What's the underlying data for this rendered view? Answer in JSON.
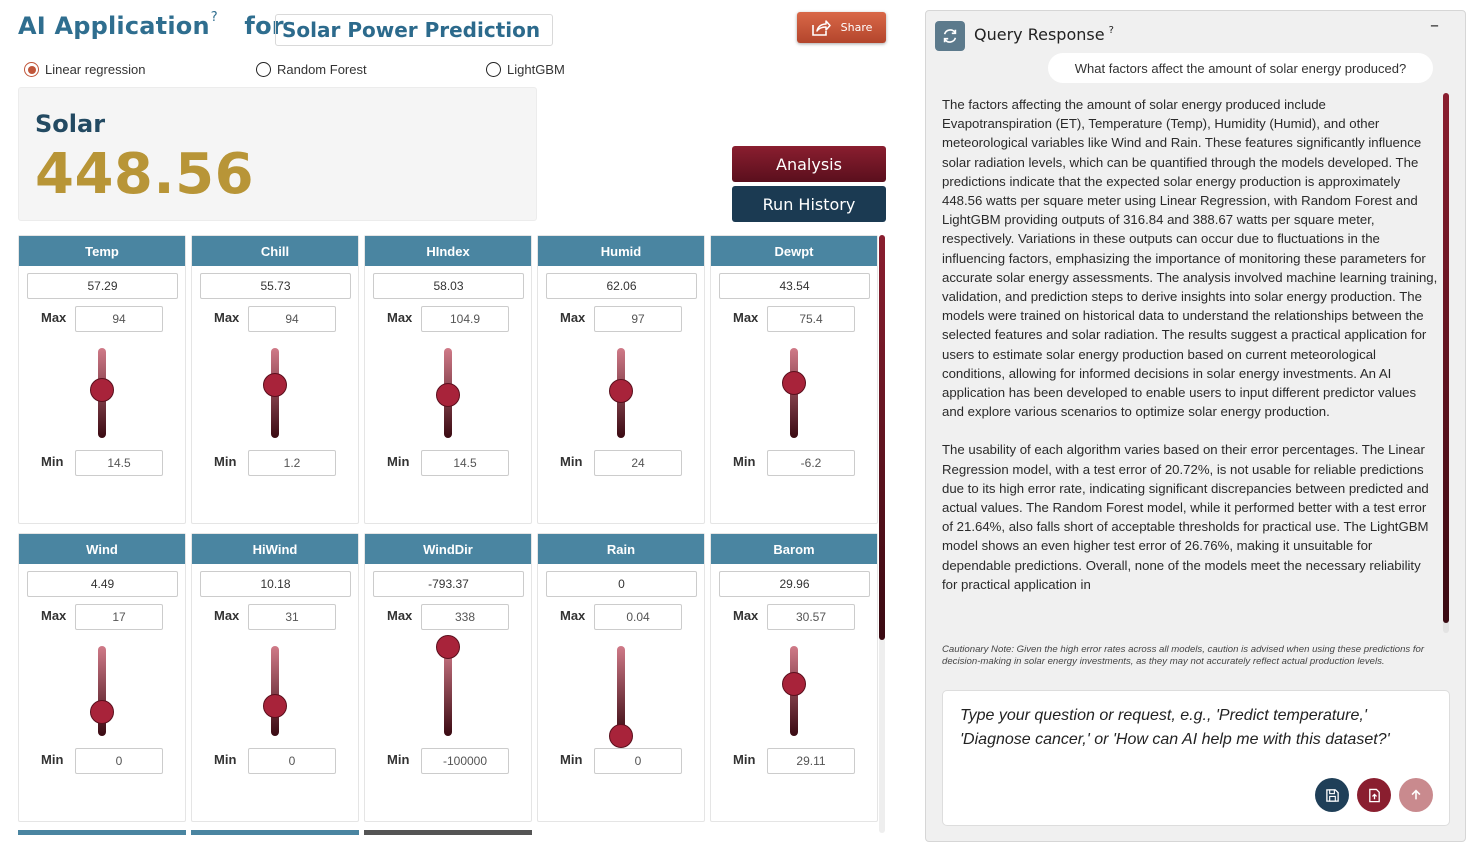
{
  "header": {
    "title_prefix": "AI Application",
    "help_glyph": "?",
    "title_connector": "for",
    "app_name": "Solar Power Prediction",
    "share_label": "Share"
  },
  "models": [
    {
      "label": "Linear regression",
      "selected": true
    },
    {
      "label": "Random Forest",
      "selected": false
    },
    {
      "label": "LightGBM",
      "selected": false
    }
  ],
  "result": {
    "label": "Solar",
    "value": "448.56"
  },
  "actions": {
    "analysis_label": "Analysis",
    "history_label": "Run History"
  },
  "max_label": "Max",
  "min_label": "Min",
  "variables": [
    {
      "name": "Temp",
      "value": "57.29",
      "max": "94",
      "min": "14.5"
    },
    {
      "name": "Chill",
      "value": "55.73",
      "max": "94",
      "min": "1.2"
    },
    {
      "name": "HIndex",
      "value": "58.03",
      "max": "104.9",
      "min": "14.5"
    },
    {
      "name": "Humid",
      "value": "62.06",
      "max": "97",
      "min": "24"
    },
    {
      "name": "Dewpt",
      "value": "43.54",
      "max": "75.4",
      "min": "-6.2"
    },
    {
      "name": "Wind",
      "value": "4.49",
      "max": "17",
      "min": "0"
    },
    {
      "name": "HiWind",
      "value": "10.18",
      "max": "31",
      "min": "0"
    },
    {
      "name": "WindDir",
      "value": "-793.37",
      "max": "338",
      "min": "-100000"
    },
    {
      "name": "Rain",
      "value": "0",
      "max": "0.04",
      "min": "0"
    },
    {
      "name": "Barom",
      "value": "29.96",
      "max": "30.57",
      "min": "29.11"
    }
  ],
  "panel": {
    "title": "Query Response",
    "help_glyph": "?",
    "minimize_glyph": "–",
    "question": "What factors affect the amount of solar energy produced?",
    "response": [
      "The factors affecting the amount of solar energy produced include Evapotranspiration (ET), Temperature (Temp), Humidity (Humid), and other meteorological variables like Wind and Rain. These features significantly influence solar radiation levels, which can be quantified through the models developed. The predictions indicate that the expected solar energy production is approximately 448.56 watts per square meter using Linear Regression, with Random Forest and LightGBM providing outputs of 316.84 and 388.67 watts per square meter, respectively. Variations in these outputs can occur due to fluctuations in the influencing factors, emphasizing the importance of monitoring these parameters for accurate solar energy assessments. The analysis involved machine learning training, validation, and prediction steps to derive insights into solar energy production. The models were trained on historical data to understand the relationships between the selected features and solar radiation. The results suggest a practical application for users to estimate solar energy production based on current meteorological conditions, allowing for informed decisions in solar energy investments. An AI application has been developed to enable users to input different predictor values and explore various scenarios to optimize solar energy production.",
      "The usability of each algorithm varies based on their error percentages. The Linear Regression model, with a test error of 20.72%, is not usable for reliable predictions due to its high error rate, indicating significant discrepancies between predicted and actual values. The Random Forest model, while it performed better with a test error of 21.64%, also falls short of acceptable thresholds for practical use. The LightGBM model shows an even higher test error of 26.76%, making it unsuitable for dependable predictions. Overall, none of the models meet the necessary reliability for practical application in"
    ],
    "caution": "Cautionary Note: Given the high error rates across all models, caution is advised when using these predictions for decision-making in solar energy investments, as they may not accurately reflect actual production levels.",
    "input_placeholder": "Type your question or request, e.g., 'Predict temperature,' 'Diagnose cancer,' or 'How can AI help me with this dataset?'"
  },
  "colors": {
    "title_blue": "#2f6e8f",
    "card_header": "#4a85a1",
    "result_gold": "#b89537",
    "maroon": "#8a1e2f",
    "navy": "#1b3a52",
    "share_orange": "#c8563a"
  },
  "icons": [
    "share-icon",
    "refresh-icon",
    "save-icon",
    "upload-file-icon",
    "send-icon"
  ]
}
